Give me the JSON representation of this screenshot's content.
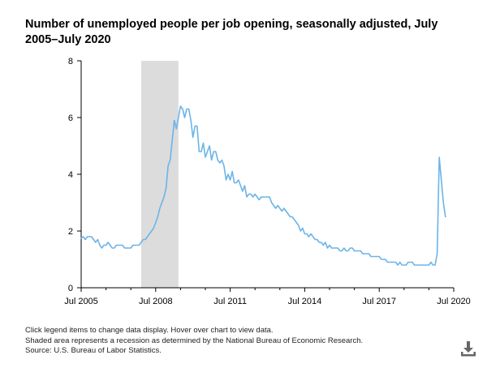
{
  "title": "Number of unemployed people per job opening, seasonally adjusted, July 2005–July 2020",
  "notes": [
    "Click legend items to change data display. Hover over chart to view data.",
    "Shaded area represents a recession as determined by the National Bureau of Economic Research.",
    "Source: U.S. Bureau of Labor Statistics."
  ],
  "download_icon": "download-icon",
  "chart_data": {
    "type": "line",
    "title": "Number of unemployed people per job opening, seasonally adjusted, July 2005–July 2020",
    "xlabel": "",
    "ylabel": "",
    "x_tick_labels": [
      "Jul 2005",
      "Jul 2008",
      "Jul 2011",
      "Jul 2014",
      "Jul 2017",
      "Jul 2020"
    ],
    "y_tick_labels": [
      "0",
      "2",
      "4",
      "6",
      "8"
    ],
    "ylim": [
      0,
      8
    ],
    "xlim": [
      "2005-07",
      "2020-07"
    ],
    "grid": false,
    "line_color": "#6cb4e8",
    "recession": {
      "start": "2007-12",
      "end": "2009-06",
      "color": "#dcdcdc"
    },
    "series": [
      {
        "start": "2005-07",
        "frequency": "monthly",
        "values": [
          1.75,
          1.8,
          1.7,
          1.8,
          1.8,
          1.8,
          1.7,
          1.6,
          1.7,
          1.5,
          1.4,
          1.5,
          1.5,
          1.6,
          1.5,
          1.4,
          1.4,
          1.5,
          1.5,
          1.5,
          1.5,
          1.4,
          1.4,
          1.4,
          1.4,
          1.5,
          1.5,
          1.5,
          1.5,
          1.6,
          1.7,
          1.7,
          1.8,
          1.9,
          2.0,
          2.1,
          2.3,
          2.5,
          2.8,
          3.0,
          3.2,
          3.5,
          4.3,
          4.5,
          5.2,
          5.9,
          5.6,
          6.0,
          6.4,
          6.3,
          6.0,
          6.3,
          6.3,
          5.9,
          5.3,
          5.7,
          5.7,
          4.8,
          4.8,
          5.1,
          4.6,
          4.8,
          5.0,
          4.5,
          4.8,
          4.8,
          4.5,
          4.4,
          4.5,
          4.3,
          3.8,
          4.0,
          3.8,
          4.1,
          3.7,
          3.7,
          3.8,
          3.6,
          3.4,
          3.6,
          3.2,
          3.3,
          3.3,
          3.2,
          3.3,
          3.2,
          3.1,
          3.2,
          3.2,
          3.2,
          3.2,
          3.2,
          3.0,
          2.9,
          2.8,
          2.9,
          2.8,
          2.7,
          2.8,
          2.7,
          2.6,
          2.5,
          2.5,
          2.4,
          2.3,
          2.2,
          2.0,
          2.1,
          1.9,
          1.9,
          1.8,
          1.9,
          1.8,
          1.7,
          1.7,
          1.6,
          1.6,
          1.5,
          1.6,
          1.4,
          1.5,
          1.4,
          1.4,
          1.4,
          1.4,
          1.3,
          1.3,
          1.4,
          1.3,
          1.3,
          1.4,
          1.4,
          1.3,
          1.3,
          1.3,
          1.3,
          1.2,
          1.2,
          1.2,
          1.2,
          1.1,
          1.1,
          1.1,
          1.1,
          1.1,
          1.0,
          1.0,
          1.0,
          0.9,
          0.9,
          0.9,
          0.9,
          0.9,
          0.8,
          0.9,
          0.8,
          0.8,
          0.8,
          0.9,
          0.9,
          0.9,
          0.8,
          0.8,
          0.8,
          0.8,
          0.8,
          0.8,
          0.8,
          0.8,
          0.9,
          0.8,
          0.8,
          1.2,
          4.6,
          3.8,
          3.0,
          2.5
        ]
      }
    ]
  }
}
